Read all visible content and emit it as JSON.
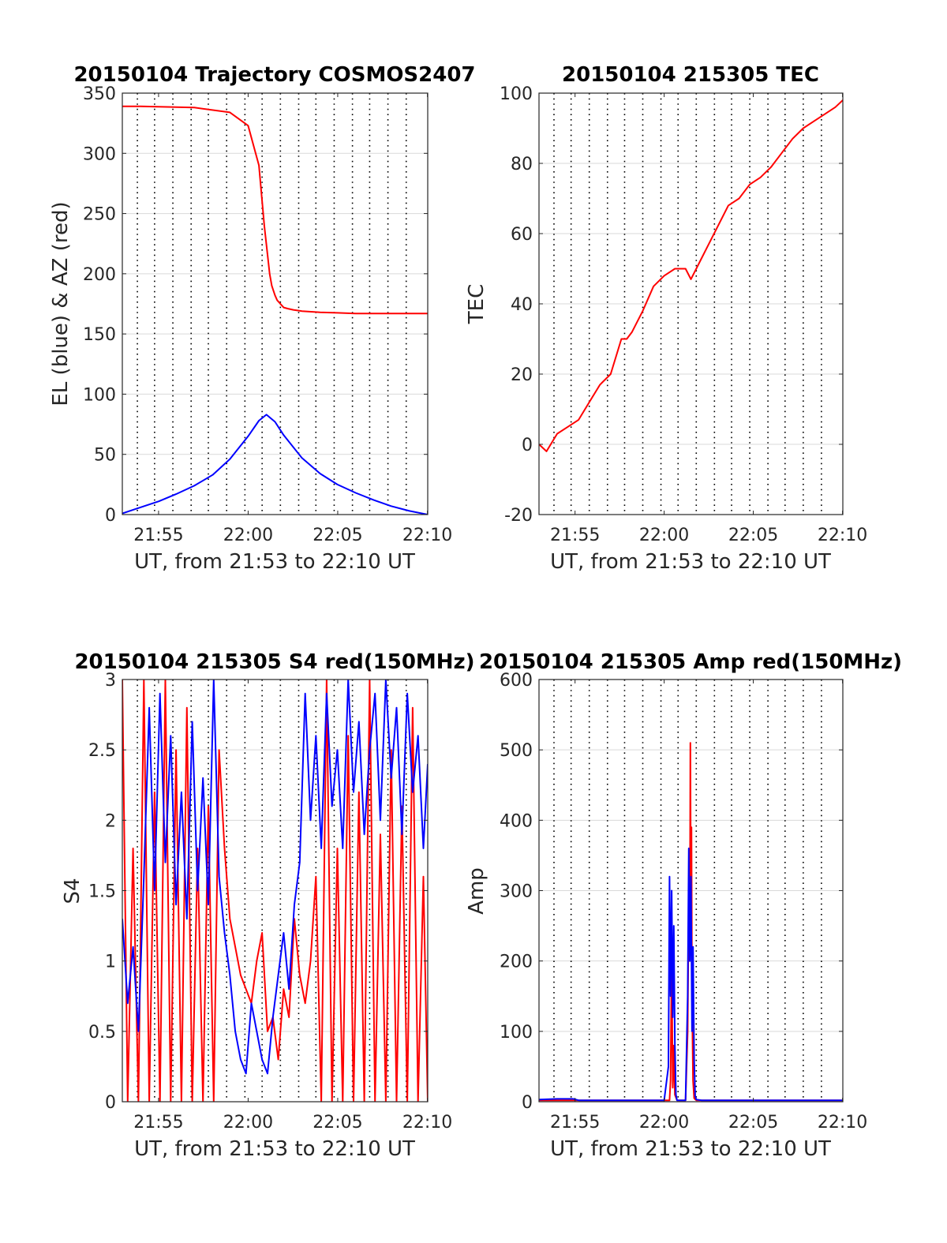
{
  "figure": {
    "panels": [
      {
        "title": "20150104 Trajectory COSMOS2407",
        "xlabel": "UT, from 21:53 to 22:10 UT",
        "ylabel": "EL (blue) & AZ (red)"
      },
      {
        "title": "20150104 215305 TEC",
        "xlabel": "UT, from 21:53 to 22:10 UT",
        "ylabel": "TEC"
      },
      {
        "title": "20150104 215305 S4 red(150MHz)",
        "xlabel": "UT, from 21:53 to 22:10 UT",
        "ylabel": "S4"
      },
      {
        "title": "20150104 215305 Amp red(150MHz)",
        "xlabel": "UT, from 21:53 to 22:10 UT",
        "ylabel": "Amp"
      }
    ]
  },
  "colors": {
    "red": "#ff0000",
    "blue": "#0000ff",
    "grid": "#d9d9d9",
    "dotted": "#000000"
  },
  "chart_data": [
    {
      "type": "line",
      "title": "20150104 Trajectory COSMOS2407",
      "xlabel": "UT, from 21:53 to 22:10 UT",
      "ylabel": "EL (blue) & AZ (red)",
      "xlim": [
        21.883,
        22.167
      ],
      "ylim": [
        0,
        350
      ],
      "xticks": [
        21.9167,
        22.0,
        22.0833,
        22.1667
      ],
      "xticklabels": [
        "21:55",
        "22:00",
        "22:05",
        "22:10"
      ],
      "yticks": [
        0,
        50,
        100,
        150,
        200,
        250,
        300,
        350
      ],
      "yticklabels": [
        "0",
        "50",
        "100",
        "150",
        "200",
        "250",
        "300",
        "350"
      ],
      "grid": true,
      "series": [
        {
          "color": "red",
          "x": [
            21.883,
            21.9,
            21.95,
            21.983,
            22.0,
            22.01,
            22.015,
            22.02,
            22.022,
            22.025,
            22.027,
            22.03,
            22.033,
            22.037,
            22.042,
            22.05,
            22.067,
            22.083,
            22.1,
            22.133,
            22.167
          ],
          "y": [
            339,
            339,
            338,
            334,
            323,
            290,
            240,
            200,
            190,
            182,
            178,
            175,
            172,
            171,
            170,
            169,
            168,
            167.5,
            167,
            167,
            167
          ]
        },
        {
          "color": "blue",
          "x": [
            21.883,
            21.9,
            21.917,
            21.933,
            21.95,
            21.967,
            21.983,
            22.0,
            22.01,
            22.017,
            22.025,
            22.033,
            22.05,
            22.067,
            22.083,
            22.1,
            22.117,
            22.133,
            22.15,
            22.167
          ],
          "y": [
            1,
            6,
            11,
            17,
            24,
            33,
            46,
            65,
            78,
            83,
            77,
            66,
            47,
            34,
            25,
            18,
            12,
            7,
            3,
            0
          ]
        }
      ]
    },
    {
      "type": "line",
      "title": "20150104 215305 TEC",
      "xlabel": "UT, from 21:53 to 22:10 UT",
      "ylabel": "TEC",
      "xlim": [
        21.883,
        22.167
      ],
      "ylim": [
        -20,
        100
      ],
      "xticks": [
        21.9167,
        22.0,
        22.0833,
        22.1667
      ],
      "xticklabels": [
        "21:55",
        "22:00",
        "22:05",
        "22:10"
      ],
      "yticks": [
        -20,
        0,
        20,
        40,
        60,
        80,
        100
      ],
      "yticklabels": [
        "-20",
        "0",
        "20",
        "40",
        "60",
        "80",
        "100"
      ],
      "grid": true,
      "series": [
        {
          "color": "red",
          "x": [
            21.883,
            21.89,
            21.9,
            21.91,
            21.92,
            21.93,
            21.94,
            21.95,
            21.96,
            21.965,
            21.97,
            21.98,
            21.99,
            22.0,
            22.01,
            22.02,
            22.025,
            22.03,
            22.04,
            22.05,
            22.06,
            22.07,
            22.08,
            22.09,
            22.1,
            22.11,
            22.12,
            22.13,
            22.14,
            22.15,
            22.16,
            22.167
          ],
          "y": [
            0,
            -2,
            3,
            5,
            7,
            12,
            17,
            20,
            30,
            30,
            32,
            38,
            45,
            48,
            50,
            50,
            47,
            50,
            56,
            62,
            68,
            70,
            74,
            76,
            79,
            83,
            87,
            90,
            92,
            94,
            96,
            98
          ]
        }
      ]
    },
    {
      "type": "line",
      "title": "20150104 215305 S4 red(150MHz)",
      "xlabel": "UT, from 21:53 to 22:10 UT",
      "ylabel": "S4",
      "xlim": [
        21.883,
        22.167
      ],
      "ylim": [
        0,
        3
      ],
      "xticks": [
        21.9167,
        22.0,
        22.0833,
        22.1667
      ],
      "xticklabels": [
        "21:55",
        "22:00",
        "22:05",
        "22:10"
      ],
      "yticks": [
        0,
        0.5,
        1,
        1.5,
        2,
        2.5,
        3
      ],
      "yticklabels": [
        "0",
        "0.5",
        "1",
        "1.5",
        "2",
        "2.5",
        "3"
      ],
      "grid": true,
      "series": [
        {
          "color": "red",
          "x": [
            21.883,
            21.888,
            21.893,
            21.898,
            21.903,
            21.908,
            21.913,
            21.918,
            21.923,
            21.928,
            21.933,
            21.938,
            21.943,
            21.948,
            21.953,
            21.958,
            21.963,
            21.968,
            21.973,
            21.978,
            21.983,
            21.988,
            21.993,
            21.998,
            22.003,
            22.008,
            22.013,
            22.018,
            22.023,
            22.028,
            22.033,
            22.038,
            22.043,
            22.048,
            22.053,
            22.058,
            22.063,
            22.068,
            22.073,
            22.078,
            22.083,
            22.088,
            22.093,
            22.098,
            22.103,
            22.108,
            22.113,
            22.118,
            22.123,
            22.128,
            22.133,
            22.138,
            22.143,
            22.148,
            22.153,
            22.158,
            22.163,
            22.167
          ],
          "y": [
            3,
            0,
            1.8,
            0,
            3,
            0,
            2.2,
            0,
            3,
            0,
            2.5,
            0,
            2.8,
            0,
            1.8,
            0,
            2.1,
            0,
            2.5,
            1.8,
            1.3,
            1.1,
            0.9,
            0.8,
            0.7,
            1.0,
            1.2,
            0.5,
            0.6,
            0.3,
            0.8,
            0.6,
            1.3,
            0.9,
            0.7,
            1.0,
            1.6,
            0,
            3,
            0,
            1.8,
            0,
            2.6,
            0,
            2.2,
            0,
            3,
            0,
            1.9,
            0,
            2.5,
            0,
            2.1,
            0,
            2.8,
            0,
            1.6,
            0
          ]
        },
        {
          "color": "blue",
          "x": [
            21.883,
            21.888,
            21.893,
            21.898,
            21.903,
            21.908,
            21.913,
            21.918,
            21.923,
            21.928,
            21.933,
            21.938,
            21.943,
            21.948,
            21.953,
            21.958,
            21.963,
            21.968,
            21.973,
            21.978,
            21.983,
            21.988,
            21.993,
            21.998,
            22.003,
            22.008,
            22.013,
            22.018,
            22.023,
            22.028,
            22.033,
            22.038,
            22.043,
            22.048,
            22.053,
            22.058,
            22.063,
            22.068,
            22.073,
            22.078,
            22.083,
            22.088,
            22.093,
            22.098,
            22.103,
            22.108,
            22.113,
            22.118,
            22.123,
            22.128,
            22.133,
            22.138,
            22.143,
            22.148,
            22.153,
            22.158,
            22.163,
            22.167
          ],
          "y": [
            1.3,
            0.7,
            1.1,
            0.5,
            1.6,
            2.8,
            1.5,
            2.9,
            1.7,
            2.6,
            1.4,
            2.2,
            1.3,
            2.7,
            1.5,
            2.3,
            1.4,
            3.0,
            1.6,
            1.2,
            0.9,
            0.5,
            0.3,
            0.2,
            0.7,
            0.5,
            0.3,
            0.2,
            0.6,
            0.9,
            1.2,
            0.8,
            1.4,
            1.7,
            2.9,
            2.0,
            2.6,
            1.8,
            2.9,
            2.1,
            2.5,
            1.8,
            3.0,
            2.2,
            2.7,
            1.9,
            2.5,
            2.9,
            2.0,
            3.0,
            2.3,
            2.8,
            1.9,
            2.9,
            2.2,
            2.6,
            1.8,
            2.4
          ]
        }
      ]
    },
    {
      "type": "line",
      "title": "20150104 215305 Amp red(150MHz)",
      "xlabel": "UT, from 21:53 to 22:10 UT",
      "ylabel": "Amp",
      "xlim": [
        21.883,
        22.167
      ],
      "ylim": [
        0,
        600
      ],
      "xticks": [
        21.9167,
        22.0,
        22.0833,
        22.1667
      ],
      "xticklabels": [
        "21:55",
        "22:00",
        "22:05",
        "22:10"
      ],
      "yticks": [
        0,
        100,
        200,
        300,
        400,
        500,
        600
      ],
      "yticklabels": [
        "0",
        "100",
        "200",
        "300",
        "400",
        "500",
        "600"
      ],
      "grid": true,
      "series": [
        {
          "color": "red",
          "x": [
            21.883,
            21.95,
            22.0,
            22.005,
            22.006,
            22.007,
            22.008,
            22.009,
            22.01,
            22.012,
            22.015,
            22.02,
            22.022,
            22.023,
            22.024,
            22.0245,
            22.025,
            22.0255,
            22.026,
            22.027,
            22.028,
            22.03,
            22.035,
            22.1,
            22.167
          ],
          "y": [
            2,
            2,
            2,
            2,
            30,
            200,
            20,
            80,
            10,
            2,
            2,
            2,
            100,
            300,
            200,
            510,
            250,
            390,
            150,
            30,
            5,
            2,
            2,
            2,
            2
          ]
        },
        {
          "color": "blue",
          "x": [
            21.883,
            21.9,
            21.915,
            21.92,
            21.95,
            22.0,
            22.004,
            22.005,
            22.006,
            22.007,
            22.008,
            22.009,
            22.01,
            22.011,
            22.012,
            22.015,
            22.02,
            22.022,
            22.023,
            22.024,
            22.025,
            22.026,
            22.027,
            22.028,
            22.029,
            22.03,
            22.035,
            22.1,
            22.167
          ],
          "y": [
            3,
            4,
            4,
            2,
            2,
            2,
            50,
            320,
            150,
            300,
            120,
            250,
            80,
            10,
            2,
            2,
            2,
            150,
            360,
            200,
            320,
            100,
            220,
            60,
            8,
            3,
            2,
            2,
            2
          ]
        }
      ]
    }
  ]
}
